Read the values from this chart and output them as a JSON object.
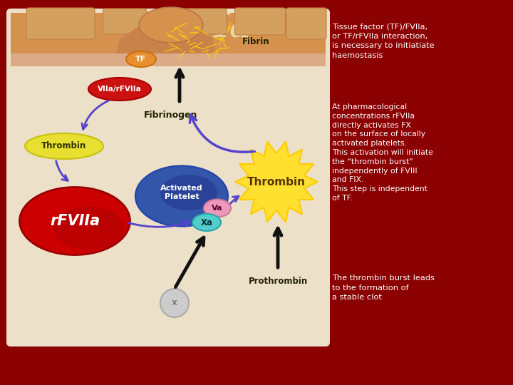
{
  "title": "rFVIIa",
  "title_color": "#E8D5A0",
  "title_fontsize": 34,
  "bg_color": "#8B0000",
  "diagram_bg": "#EDE0C8",
  "text1": "Tissue factor (TF)/FVIIa,\nor TF/rFVIIa interaction,\nis necessary to initiatiate\nhaemostasis",
  "text2": "At pharmacological\nconcentrations rFVIIa\ndirectly activates FX\non the surface of locally\nactivated platelets.\nThis activation will initiate\nthe “thrombin burst”\nindependently of FVIII\nand FIX.\nThis step is independent\nof TF.",
  "text3": "The thrombin burst leads\nto the formation of\na stable clot",
  "text_color": "#FFFFFF",
  "skin_orange": "#D4924E",
  "skin_dark": "#B87840",
  "skin_light": "#E0AA70",
  "fibrin_color": "#FFD700",
  "tf_color": "#E89030",
  "viia_color": "#CC1111",
  "thrombin_yellow_color": "#E8E030",
  "rfviia_color": "#CC0000",
  "platelet_color": "#3355AA",
  "va_color": "#EE99BB",
  "xa_color": "#55CCCC",
  "burst_color": "#FFE030",
  "arrow_blue": "#5544CC",
  "arrow_black": "#111111"
}
